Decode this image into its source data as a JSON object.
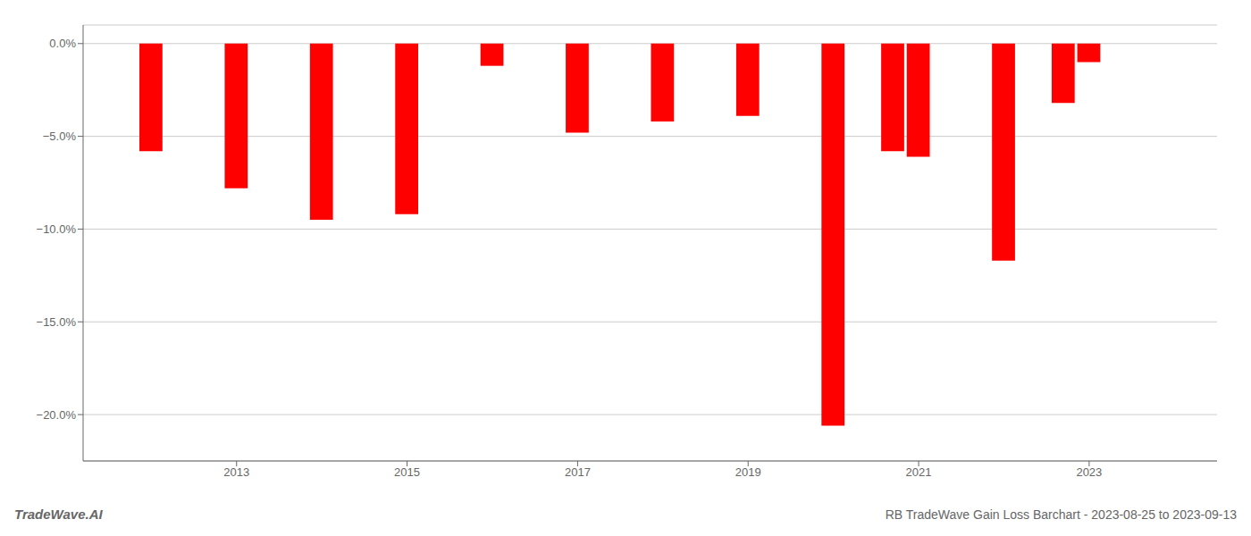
{
  "chart_data": {
    "type": "bar",
    "x": [
      2012,
      2013,
      2014,
      2015,
      2016,
      2017,
      2018,
      2019,
      2020,
      2020.7,
      2021,
      2022,
      2022.7,
      2023
    ],
    "values": [
      -5.8,
      -7.8,
      -9.5,
      -9.2,
      -1.2,
      -4.8,
      -4.2,
      -3.9,
      -20.6,
      -5.8,
      -6.1,
      -11.7,
      -3.2,
      -1.0
    ],
    "color": "#ff0000",
    "xlim": [
      2011.2,
      2024.5
    ],
    "xticks": [
      2013,
      2015,
      2017,
      2019,
      2021,
      2023
    ],
    "ylim": [
      -22.5,
      1.0
    ],
    "yticks": [
      {
        "value": 0.0,
        "label": "0.0%"
      },
      {
        "value": -5.0,
        "label": "−5.0%"
      },
      {
        "value": -10.0,
        "label": "−10.0%"
      },
      {
        "value": -15.0,
        "label": "−15.0%"
      },
      {
        "value": -20.0,
        "label": "−20.0%"
      }
    ],
    "grid": true,
    "annotations": [
      "TradeWave.AI",
      "RB TradeWave Gain Loss Barchart - 2023-08-25 to 2023-09-13"
    ]
  }
}
